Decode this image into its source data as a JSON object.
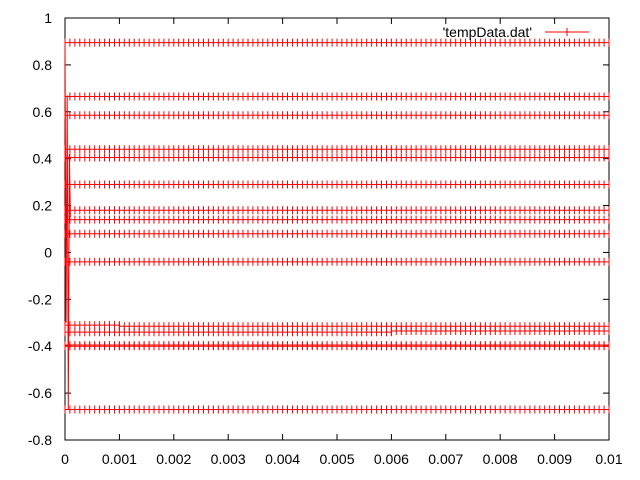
{
  "chart_data": {
    "type": "line",
    "legend": {
      "label": "'tempData.dat'",
      "position": "top-right",
      "marker": "+"
    },
    "xlim": [
      0,
      0.01
    ],
    "ylim": [
      -0.8,
      1
    ],
    "grid": false,
    "x_ticks": [
      "0",
      "0.001",
      "0.002",
      "0.003",
      "0.004",
      "0.005",
      "0.006",
      "0.007",
      "0.008",
      "0.009",
      "0.01"
    ],
    "y_ticks": [
      "1",
      "0.8",
      "0.6",
      "0.4",
      "0.2",
      "0",
      "-0.2",
      "-0.4",
      "-0.6",
      "-0.8"
    ],
    "series": [
      {
        "name": "'tempData.dat'",
        "color": "#ff0000",
        "spike_x": [
          0,
          2e-05,
          4e-05,
          6e-05,
          8e-05,
          0.0001
        ],
        "spike_y": [
          0.9,
          -0.3,
          0.67,
          -0.67,
          0.42,
          0.15
        ],
        "levels": [
          {
            "y": 0.895,
            "x_start": 0,
            "x_end": 0.01
          },
          {
            "y": 0.665,
            "x_start": 0,
            "x_end": 0.01
          },
          {
            "y": 0.585,
            "x_start": 0,
            "x_end": 0.01
          },
          {
            "y": 0.44,
            "x_start": 0,
            "x_end": 0.01
          },
          {
            "y": 0.405,
            "x_start": 0,
            "x_end": 0.01
          },
          {
            "y": 0.29,
            "x_start": 0,
            "x_end": 0.01
          },
          {
            "y": 0.18,
            "x_start": 0,
            "x_end": 0.01
          },
          {
            "y": 0.14,
            "x_start": 0,
            "x_end": 0.01
          },
          {
            "y": 0.08,
            "x_start": 0,
            "x_end": 0.01
          },
          {
            "y": -0.04,
            "x_start": 0,
            "x_end": 0.01
          },
          {
            "y": -0.31,
            "x_start": 0,
            "x_end": 0.001
          },
          {
            "y": -0.315,
            "x_start": 0.001,
            "x_end": 0.01
          },
          {
            "y": -0.34,
            "x_start": 0,
            "x_end": 0.006
          },
          {
            "y": -0.335,
            "x_start": 0.006,
            "x_end": 0.01
          },
          {
            "y": -0.395,
            "x_start": 0,
            "x_end": 0.01
          },
          {
            "y": -0.4,
            "x_start": 0,
            "x_end": 0.01
          },
          {
            "y": -0.67,
            "x_start": 0,
            "x_end": 0.01
          }
        ]
      }
    ]
  }
}
